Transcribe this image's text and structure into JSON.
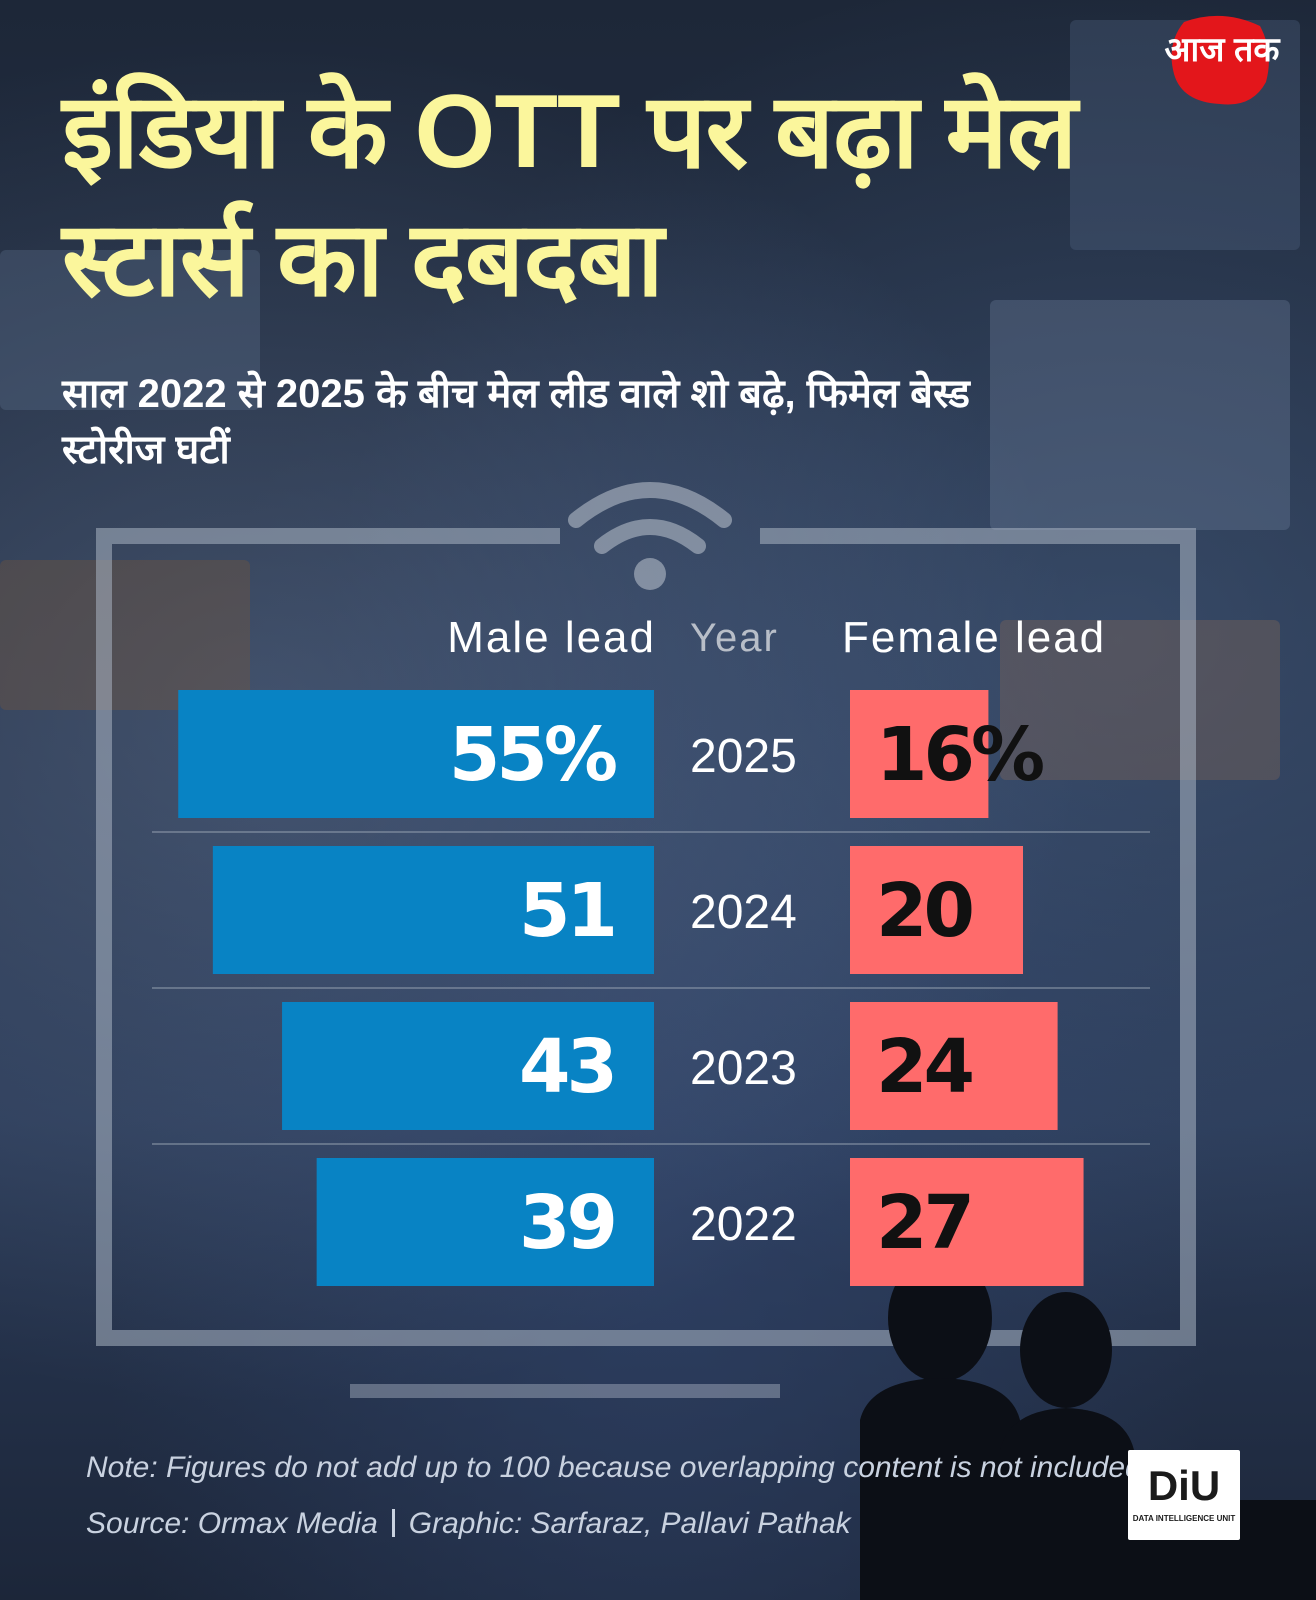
{
  "title": "इंडिया के OTT पर बढ़ा मेल स्टार्स का दबदबा",
  "subtitle": "साल 2022 से 2025 के बीच मेल लीड वाले शो बढ़े, फिमेल बेस्ड स्टोरीज घटीं",
  "logo": {
    "text": "आज तक",
    "icon": "aaj-tak-logo"
  },
  "colors": {
    "title": "#fbf69c",
    "male_bar": "#0883c4",
    "female_bar": "#ff6b6b",
    "male_label": "#ffffff",
    "female_label": "#111111"
  },
  "headers": {
    "male": "Male lead",
    "year": "Year",
    "female": "Female lead"
  },
  "chart_data": {
    "type": "bar",
    "orientation": "horizontal-diverging",
    "categories": [
      "2025",
      "2024",
      "2023",
      "2022"
    ],
    "series": [
      {
        "name": "Male lead",
        "values": [
          55,
          51,
          43,
          39
        ],
        "labels": [
          "55%",
          "51",
          "43",
          "39"
        ]
      },
      {
        "name": "Female lead",
        "values": [
          16,
          20,
          24,
          27
        ],
        "labels": [
          "16%",
          "20",
          "24",
          "27"
        ]
      }
    ],
    "title": "",
    "xlabel": "",
    "ylabel": ""
  },
  "footer": {
    "note": "Note: Figures do not add up to 100 because overlapping content is not included",
    "source": "Source: Ormax Media",
    "graphic": "Graphic: Sarfaraz, Pallavi Pathak"
  },
  "diu": {
    "text": "DiU",
    "subtext": "DATA INTELLIGENCE UNIT"
  }
}
